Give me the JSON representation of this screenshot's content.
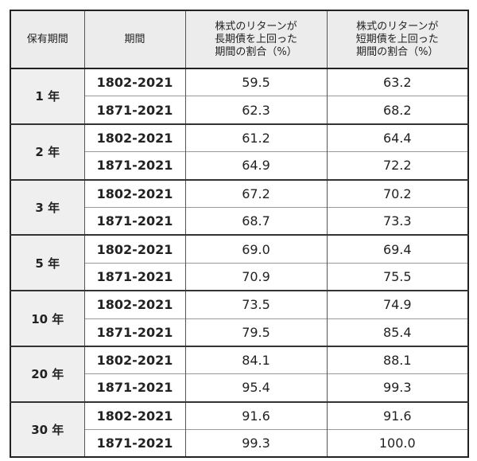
{
  "table": {
    "header": [
      "保有期間",
      "期間",
      [
        "株式のリターンが",
        "長期債を上回った",
        "期間の割合（%）"
      ],
      [
        "株式のリターンが",
        "短期債を上回った",
        "期間の割合（%）"
      ]
    ],
    "groups": [
      {
        "holding": "1 年",
        "rows": [
          [
            "1802-2021",
            "59.5",
            "63.2"
          ],
          [
            "1871-2021",
            "62.3",
            "68.2"
          ]
        ]
      },
      {
        "holding": "2 年",
        "rows": [
          [
            "1802-2021",
            "61.2",
            "64.4"
          ],
          [
            "1871-2021",
            "64.9",
            "72.2"
          ]
        ]
      },
      {
        "holding": "3 年",
        "rows": [
          [
            "1802-2021",
            "67.2",
            "70.2"
          ],
          [
            "1871-2021",
            "68.7",
            "73.3"
          ]
        ]
      },
      {
        "holding": "5 年",
        "rows": [
          [
            "1802-2021",
            "69.0",
            "69.4"
          ],
          [
            "1871-2021",
            "70.9",
            "75.5"
          ]
        ]
      },
      {
        "holding": "10 年",
        "rows": [
          [
            "1802-2021",
            "73.5",
            "74.9"
          ],
          [
            "1871-2021",
            "79.5",
            "85.4"
          ]
        ]
      },
      {
        "holding": "20 年",
        "rows": [
          [
            "1802-2021",
            "84.1",
            "88.1"
          ],
          [
            "1871-2021",
            "95.4",
            "99.3"
          ]
        ]
      },
      {
        "holding": "30 年",
        "rows": [
          [
            "1802-2021",
            "91.6",
            "91.6"
          ],
          [
            "1871-2021",
            "99.3",
            "100.0"
          ]
        ]
      }
    ]
  }
}
